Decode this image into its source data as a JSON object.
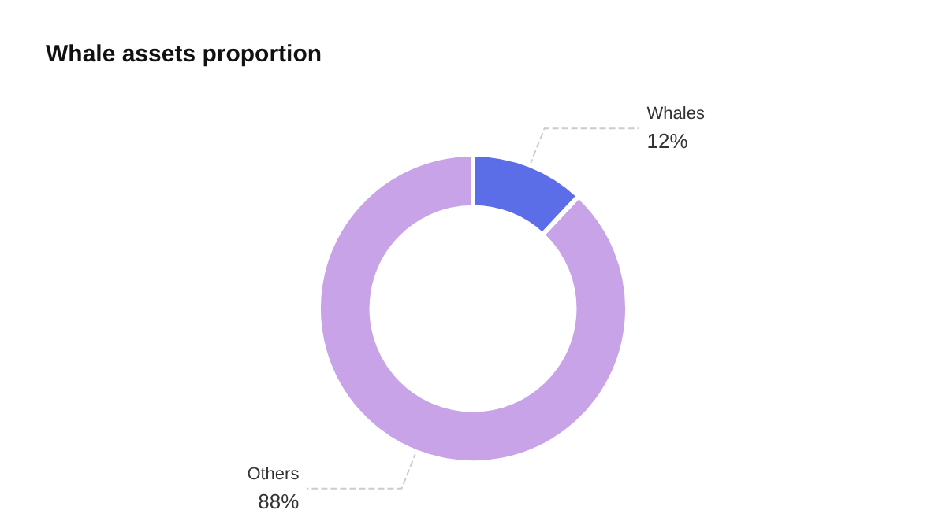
{
  "chart_data": {
    "type": "donut",
    "title": "Whale assets proportion",
    "categories": [
      "Whales",
      "Others"
    ],
    "values": [
      12,
      88
    ],
    "colors": [
      "#5b6ee8",
      "#c9a3e8"
    ],
    "value_labels": [
      "12%",
      "88%"
    ],
    "legend": false
  }
}
